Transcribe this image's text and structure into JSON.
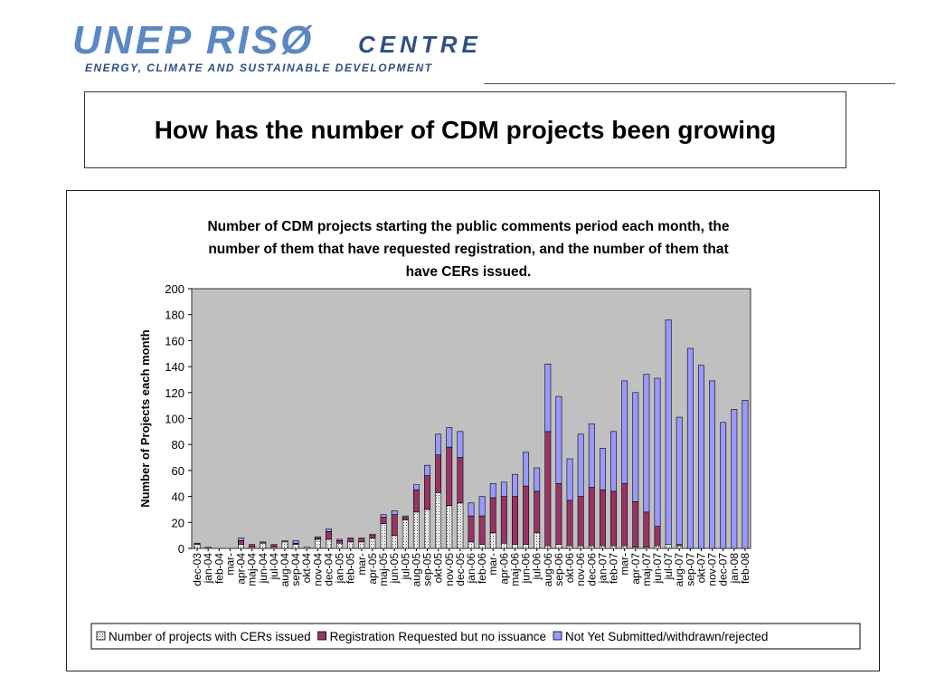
{
  "logo": {
    "main": "UNEP RISØ",
    "centre": "CENTRE",
    "subtitle": "ENERGY, CLIMATE AND SUSTAINABLE DEVELOPMENT"
  },
  "slide_title": "How has the number of CDM projects been growing",
  "chart_data": {
    "type": "bar",
    "stacked": true,
    "title_lines": [
      "Number of CDM projects starting the public comments period each month, the",
      "number of them that have requested registration, and the number of them that",
      "have CERs issued."
    ],
    "ylabel": "Number of Projects each month",
    "xlabel": "",
    "ylim": [
      0,
      200
    ],
    "yticks": [
      0,
      20,
      40,
      60,
      80,
      100,
      120,
      140,
      160,
      180,
      200
    ],
    "grid": false,
    "plot_background": "#c0c0c0",
    "legend_position": "bottom",
    "categories": [
      "dec-03",
      "jan-04",
      "feb-04",
      "mar-04",
      "apr-04",
      "maj-04",
      "jun-04",
      "jul-04",
      "aug-04",
      "sep-04",
      "okt-04",
      "nov-04",
      "dec-04",
      "jan-05",
      "feb-05",
      "mar-05",
      "apr-05",
      "maj-05",
      "jun-05",
      "jul-05",
      "aug-05",
      "sep-05",
      "okt-05",
      "nov-05",
      "dec-05",
      "jan-06",
      "feb-06",
      "mar-06",
      "apr-06",
      "maj-06",
      "jun-06",
      "jul-06",
      "aug-06",
      "sep-06",
      "okt-06",
      "nov-06",
      "dec-06",
      "jan-07",
      "feb-07",
      "mar-07",
      "apr-07",
      "maj-07",
      "jun-07",
      "jul-07",
      "aug-07",
      "sep-07",
      "okt-07",
      "nov-07",
      "dec-07",
      "jan-08",
      "feb-08"
    ],
    "tick_labels": [
      "dec-03",
      "jan-04",
      "feb-04",
      "mar-",
      "apr-04",
      "maj-04",
      "jun-04",
      "jul-04",
      "aug-04",
      "sep-04",
      "okt-04",
      "nov-04",
      "dec-04",
      "jan-05",
      "feb-05",
      "mar-",
      "apr-05",
      "maj-05",
      "jun-05",
      "jul-05",
      "aug-05",
      "sep-05",
      "okt-05",
      "nov-05",
      "dec-05",
      "jan-06",
      "feb-06",
      "mar-",
      "apr-06",
      "maj-06",
      "jun-06",
      "jul-06",
      "aug-06",
      "sep-06",
      "okt-06",
      "nov-06",
      "dec-06",
      "jan-07",
      "feb-07",
      "mar-",
      "apr-07",
      "maj-07",
      "jun-07",
      "jul-07",
      "aug-07",
      "sep-07",
      "okt-07",
      "nov-07",
      "dec-07",
      "jan-08",
      "feb-08"
    ],
    "series": [
      {
        "name": "Number of projects with CERs issued",
        "color": "#ffffff",
        "pattern": "dotted",
        "values": [
          3,
          0,
          0,
          0,
          3,
          1,
          4,
          1,
          5,
          3,
          1,
          7,
          7,
          4,
          5,
          5,
          8,
          19,
          10,
          22,
          28,
          30,
          43,
          33,
          35,
          5,
          3,
          12,
          4,
          3,
          3,
          12,
          2,
          3,
          2,
          2,
          2,
          2,
          2,
          2,
          1,
          1,
          2,
          3,
          2,
          0,
          0,
          0,
          0,
          0,
          0
        ]
      },
      {
        "name": "Registration Requested but no issuance",
        "color": "#993366",
        "values": [
          1,
          0,
          0,
          0,
          3,
          2,
          1,
          2,
          0,
          1,
          0,
          1,
          6,
          2,
          3,
          3,
          2,
          5,
          16,
          2,
          17,
          26,
          29,
          45,
          35,
          20,
          22,
          27,
          36,
          37,
          45,
          32,
          88,
          47,
          35,
          38,
          45,
          43,
          42,
          48,
          35,
          27,
          15,
          0,
          1,
          0,
          0,
          0,
          0,
          0,
          0
        ]
      },
      {
        "name": "Not Yet Submitted/withdrawn/rejected",
        "color": "#9999ff",
        "values": [
          0,
          1,
          0,
          0,
          2,
          0,
          0,
          0,
          1,
          2,
          0,
          1,
          2,
          1,
          0,
          0,
          1,
          2,
          3,
          1,
          4,
          8,
          16,
          15,
          20,
          10,
          15,
          11,
          11,
          17,
          26,
          18,
          52,
          67,
          32,
          48,
          49,
          32,
          46,
          79,
          84,
          106,
          114,
          173,
          98,
          154,
          141,
          129,
          97,
          107,
          114
        ]
      }
    ]
  }
}
